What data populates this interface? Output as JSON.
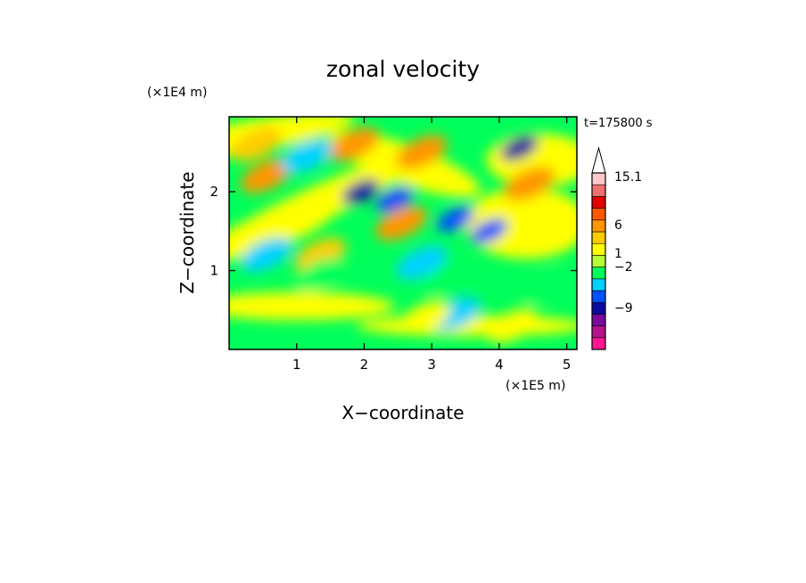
{
  "chart_data": {
    "type": "heatmap",
    "title": "zonal velocity",
    "xlabel": "X−coordinate",
    "ylabel": "Z−coordinate",
    "x_unit": "(×1E5 m)",
    "y_unit": "(×1E4 m)",
    "time_label": "t=175800 s",
    "xlim": [
      0,
      5.15
    ],
    "ylim": [
      0,
      2.95
    ],
    "x_ticks": [
      1,
      2,
      3,
      4,
      5
    ],
    "y_ticks": [
      1,
      2
    ],
    "x_tick_labels": [
      "1",
      "2",
      "3",
      "4",
      "5"
    ],
    "y_tick_labels": [
      "1",
      "2"
    ],
    "colorbar": {
      "labels": [
        "15.1",
        "6",
        "1",
        "−2",
        "−9"
      ],
      "colors": [
        "#ff1493",
        "#b4138c",
        "#7a0a9c",
        "#0a0aa0",
        "#0050ff",
        "#00d2ff",
        "#00ff5a",
        "#b4ff32",
        "#ffff00",
        "#ffcc00",
        "#ff9600",
        "#ff5a00",
        "#e60000",
        "#f07070",
        "#ffc8c8"
      ],
      "extend_top_color": "#ffffff"
    },
    "features": [
      {
        "x": 4.3,
        "z": 2.55,
        "value": -11
      },
      {
        "x": 1.95,
        "z": 2.0,
        "value": -11
      },
      {
        "x": 2.45,
        "z": 1.9,
        "value": -9
      },
      {
        "x": 3.35,
        "z": 1.65,
        "value": -9
      },
      {
        "x": 3.85,
        "z": 1.5,
        "value": -9
      },
      {
        "x": 2.55,
        "z": 1.6,
        "value": 6
      },
      {
        "x": 1.85,
        "z": 2.6,
        "value": 6
      },
      {
        "x": 2.85,
        "z": 2.5,
        "value": 6
      },
      {
        "x": 0.55,
        "z": 2.2,
        "value": 6
      },
      {
        "x": 4.45,
        "z": 2.1,
        "value": 6
      },
      {
        "x": 0.4,
        "z": 2.6,
        "value": 4
      },
      {
        "x": 1.35,
        "z": 1.2,
        "value": 3
      },
      {
        "x": 1.15,
        "z": 2.45,
        "value": -2
      },
      {
        "x": 0.55,
        "z": 1.2,
        "value": -2
      },
      {
        "x": 2.85,
        "z": 1.1,
        "value": -2
      },
      {
        "x": 3.35,
        "z": 0.45,
        "value": -2
      },
      {
        "x": 1.35,
        "z": 0.95,
        "value": -1
      },
      {
        "x": 3.25,
        "z": 0.9,
        "value": -1
      },
      {
        "x": 4.7,
        "z": 0.8,
        "value": -1
      },
      {
        "x": 2.9,
        "z": 0.4,
        "value": 2
      },
      {
        "x": 4.2,
        "z": 0.3,
        "value": 2
      }
    ]
  }
}
